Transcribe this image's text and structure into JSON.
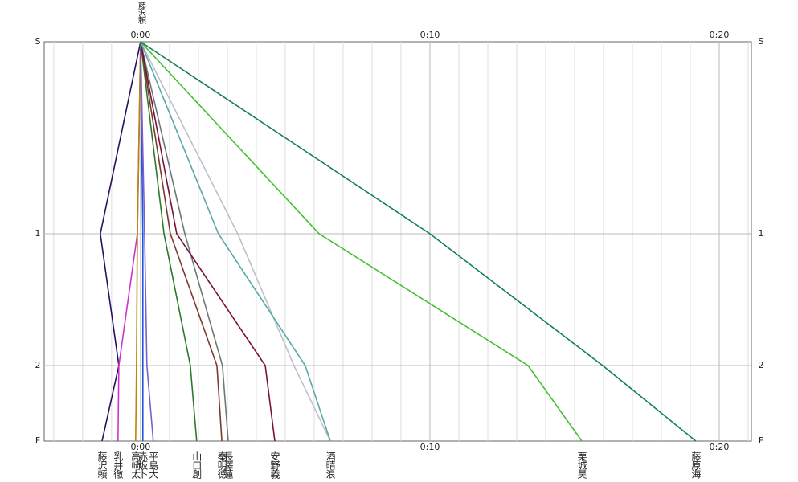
{
  "chart_data": {
    "type": "line",
    "leader": "藤沢頼",
    "categories": [
      "S",
      "1",
      "2",
      "F"
    ],
    "xlim": [
      -3.33,
      21.11
    ],
    "xticks": [
      {
        "value": 0,
        "label": "0:00"
      },
      {
        "value": 10,
        "label": "0:10"
      },
      {
        "value": 20,
        "label": "0:20"
      }
    ],
    "grid": true,
    "series": [
      {
        "name": "藤沢頼",
        "color": "#2b0f5e",
        "values": [
          0,
          -1.39,
          -0.75,
          -1.33
        ]
      },
      {
        "name": "乳井徹",
        "color": "#cc33cc",
        "values": [
          0,
          -0.11,
          -0.75,
          -0.78
        ]
      },
      {
        "name": "高崎太",
        "color": "#b8860b",
        "values": [
          0,
          -0.11,
          -0.14,
          -0.17
        ]
      },
      {
        "name": "赤坂卜",
        "color": "#2255dd",
        "values": [
          0,
          0.08,
          0.08,
          0.08
        ]
      },
      {
        "name": "平島大",
        "color": "#7a5fd0",
        "values": [
          0,
          0.14,
          0.22,
          0.44
        ]
      },
      {
        "name": "山口創",
        "color": "#2a7a2a",
        "values": [
          0,
          0.81,
          1.72,
          1.94
        ]
      },
      {
        "name": "秦明徳",
        "color": "#7a3b2e",
        "values": [
          0,
          1.03,
          2.64,
          2.81
        ]
      },
      {
        "name": "長澤蓮",
        "color": "#6a7a74",
        "values": [
          0,
          1.53,
          2.83,
          3.03
        ]
      },
      {
        "name": "安野義",
        "color": "#7a0f3a",
        "values": [
          0,
          1.25,
          4.31,
          4.64
        ]
      },
      {
        "name": null,
        "color": "#c0c0c8",
        "values": [
          0,
          3.36,
          5.3,
          6.56
        ]
      },
      {
        "name": "酒晴浪",
        "color": "#5aa8a8",
        "values": [
          0,
          2.69,
          5.69,
          6.56
        ]
      },
      {
        "name": "栗城昊",
        "color": "#44c030",
        "values": [
          0,
          6.17,
          13.39,
          15.25
        ]
      },
      {
        "name": "藤原海",
        "color": "#118055",
        "values": [
          0,
          10.0,
          15.97,
          19.19
        ]
      }
    ]
  }
}
